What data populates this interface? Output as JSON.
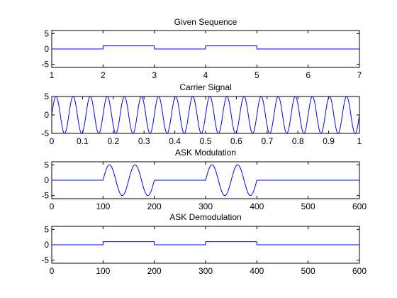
{
  "colors": {
    "line": "#0000ff",
    "axes": "#000000",
    "background": "#ffffff"
  },
  "chart_data": [
    {
      "type": "line",
      "title": "Given Sequence",
      "xlabel": "",
      "ylabel": "",
      "xlim": [
        1,
        7
      ],
      "ylim": [
        -6,
        6
      ],
      "grid": false,
      "xticks": [
        1,
        2,
        3,
        4,
        5,
        6,
        7
      ],
      "yticks": [
        -5,
        0,
        5
      ],
      "signal": {
        "kind": "steps",
        "x": [
          1,
          2,
          3,
          4,
          5,
          6,
          7
        ],
        "values": [
          0,
          1,
          0,
          1,
          0,
          0
        ]
      }
    },
    {
      "type": "line",
      "title": "Carrier Signal",
      "xlabel": "",
      "ylabel": "",
      "xlim": [
        0,
        1
      ],
      "ylim": [
        -5,
        5
      ],
      "grid": false,
      "xticks": [
        0,
        0.1,
        0.2,
        0.3,
        0.4,
        0.5,
        0.6,
        0.7,
        0.8,
        0.9,
        1
      ],
      "yticks": [
        -5,
        0,
        5
      ],
      "signal": {
        "kind": "sine",
        "amplitude": 5,
        "cycles": 18,
        "x_start": 0,
        "x_end": 1
      }
    },
    {
      "type": "line",
      "title": "ASK Modulation",
      "xlabel": "",
      "ylabel": "",
      "xlim": [
        0,
        600
      ],
      "ylim": [
        -6,
        6
      ],
      "grid": false,
      "xticks": [
        0,
        100,
        200,
        300,
        400,
        500,
        600
      ],
      "yticks": [
        -5,
        0,
        5
      ],
      "signal": {
        "kind": "ask",
        "amplitude": 5,
        "bit_period": 100,
        "cycles_per_bit": 2,
        "bits": [
          0,
          1,
          0,
          1,
          0,
          0
        ]
      }
    },
    {
      "type": "line",
      "title": "ASK Demodulation",
      "xlabel": "",
      "ylabel": "",
      "xlim": [
        0,
        600
      ],
      "ylim": [
        -6,
        6
      ],
      "grid": false,
      "xticks": [
        0,
        100,
        200,
        300,
        400,
        500,
        600
      ],
      "yticks": [
        -5,
        0,
        5
      ],
      "signal": {
        "kind": "steps",
        "x": [
          0,
          100,
          200,
          300,
          400,
          500,
          600
        ],
        "values": [
          0,
          1,
          0,
          1,
          0,
          0
        ]
      }
    }
  ]
}
